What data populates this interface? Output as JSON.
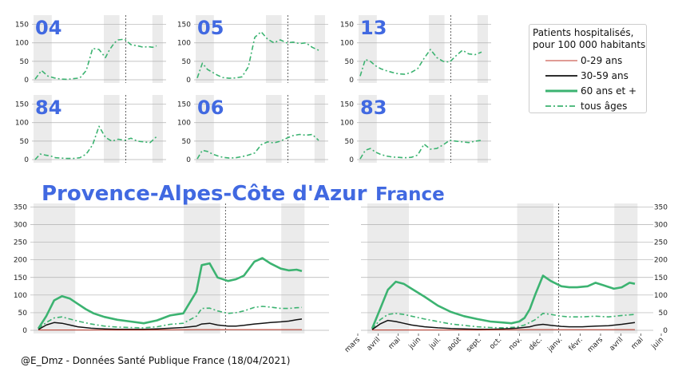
{
  "legend": {
    "title_line1": "Patients hospitalisés,",
    "title_line2": "pour 100 000 habitants",
    "items": [
      {
        "label": "0-29 ans",
        "color": "#c0392b",
        "style": "thin"
      },
      {
        "label": "30-59 ans",
        "color": "#111111",
        "style": "medium"
      },
      {
        "label": "60 ans et +",
        "color": "#3cb371",
        "style": "thick"
      },
      {
        "label": "tous âges",
        "color": "#3cb371",
        "style": "dashdot"
      }
    ]
  },
  "titles": {
    "region": "Provence-Alpes-Côte d'Azur",
    "country": "France"
  },
  "footer": "@E_Dmz - Données Santé Publique France (18/04/2021)",
  "colors": {
    "young": "#c0392b",
    "middle": "#111111",
    "old": "#3cb371",
    "shade": "#ebebeb",
    "grid": "#b0b0b0",
    "title": "#4169e1"
  },
  "chart_data": [
    {
      "type": "line",
      "panel": "04",
      "title": "04",
      "yticks": [
        0,
        50,
        100,
        150
      ],
      "ylim": [
        0,
        175
      ],
      "series": [
        {
          "name": "tous âges",
          "x": [
            0,
            5,
            10,
            15,
            20,
            25,
            30,
            35,
            40,
            45,
            50,
            55,
            58,
            62,
            65,
            70,
            75,
            80,
            85,
            88,
            92,
            95
          ],
          "values": [
            2,
            25,
            10,
            5,
            2,
            1,
            3,
            5,
            25,
            85,
            82,
            60,
            80,
            100,
            108,
            110,
            95,
            92,
            88,
            90,
            88,
            92
          ]
        }
      ]
    },
    {
      "type": "line",
      "panel": "05",
      "title": "05",
      "yticks": [
        0,
        50,
        100,
        150
      ],
      "ylim": [
        0,
        175
      ],
      "series": [
        {
          "name": "tous âges",
          "x": [
            0,
            4,
            8,
            12,
            16,
            20,
            25,
            30,
            35,
            40,
            45,
            50,
            55,
            60,
            65,
            70,
            75,
            80,
            85,
            90,
            95
          ],
          "values": [
            5,
            45,
            28,
            20,
            12,
            6,
            4,
            5,
            8,
            35,
            115,
            130,
            110,
            100,
            108,
            100,
            102,
            98,
            100,
            88,
            80
          ]
        }
      ]
    },
    {
      "type": "line",
      "panel": "13",
      "title": "13",
      "yticks": [
        0,
        50,
        100,
        150
      ],
      "ylim": [
        0,
        175
      ],
      "series": [
        {
          "name": "tous âges",
          "x": [
            0,
            4,
            8,
            12,
            16,
            20,
            25,
            30,
            35,
            40,
            45,
            50,
            55,
            60,
            65,
            70,
            75,
            80,
            85,
            90,
            95
          ],
          "values": [
            10,
            55,
            50,
            38,
            30,
            25,
            20,
            16,
            15,
            20,
            30,
            58,
            82,
            60,
            50,
            48,
            65,
            80,
            70,
            68,
            75
          ]
        }
      ]
    },
    {
      "type": "line",
      "panel": "84",
      "title": "84",
      "yticks": [
        0,
        50,
        100,
        150
      ],
      "ylim": [
        0,
        175
      ],
      "series": [
        {
          "name": "tous âges",
          "x": [
            0,
            4,
            8,
            12,
            16,
            20,
            25,
            30,
            35,
            40,
            45,
            50,
            55,
            60,
            65,
            70,
            75,
            80,
            85,
            90,
            95
          ],
          "values": [
            0,
            15,
            12,
            10,
            5,
            4,
            3,
            3,
            5,
            15,
            40,
            90,
            60,
            50,
            55,
            52,
            58,
            50,
            48,
            46,
            62
          ]
        }
      ]
    },
    {
      "type": "line",
      "panel": "06",
      "title": "06",
      "yticks": [
        0,
        50,
        100,
        150
      ],
      "ylim": [
        0,
        175
      ],
      "series": [
        {
          "name": "tous âges",
          "x": [
            0,
            4,
            8,
            12,
            16,
            20,
            25,
            30,
            35,
            40,
            45,
            50,
            55,
            60,
            65,
            70,
            75,
            80,
            85,
            90,
            95
          ],
          "values": [
            2,
            25,
            22,
            15,
            10,
            6,
            4,
            5,
            8,
            12,
            18,
            40,
            48,
            45,
            50,
            58,
            65,
            68,
            66,
            68,
            52
          ]
        }
      ]
    },
    {
      "type": "line",
      "panel": "83",
      "title": "83",
      "yticks": [
        0,
        50,
        100,
        150
      ],
      "ylim": [
        0,
        175
      ],
      "series": [
        {
          "name": "tous âges",
          "x": [
            0,
            4,
            8,
            12,
            16,
            20,
            25,
            30,
            35,
            40,
            45,
            50,
            55,
            60,
            65,
            70,
            75,
            80,
            85,
            90,
            95
          ],
          "values": [
            2,
            25,
            30,
            20,
            14,
            10,
            7,
            6,
            5,
            6,
            12,
            42,
            28,
            30,
            40,
            52,
            50,
            48,
            46,
            50,
            52
          ]
        }
      ]
    },
    {
      "type": "line",
      "panel": "Provence-Alpes-Côte d'Azur",
      "title": "Provence-Alpes-Côte d'Azur",
      "yticks": [
        0,
        50,
        100,
        150,
        200,
        250,
        300,
        350
      ],
      "ylim": [
        0,
        360
      ],
      "series": [
        {
          "name": "60 ans et +",
          "x": [
            0,
            3,
            6,
            9,
            12,
            15,
            18,
            21,
            25,
            30,
            35,
            40,
            45,
            50,
            55,
            60,
            62,
            65,
            68,
            72,
            75,
            78,
            82,
            85,
            88,
            92,
            95,
            98,
            100
          ],
          "values": [
            5,
            40,
            85,
            97,
            90,
            75,
            60,
            48,
            38,
            30,
            25,
            20,
            28,
            42,
            48,
            110,
            185,
            190,
            150,
            140,
            145,
            155,
            195,
            205,
            190,
            175,
            170,
            172,
            168
          ]
        },
        {
          "name": "tous âges",
          "x": [
            0,
            3,
            6,
            9,
            12,
            15,
            20,
            25,
            30,
            35,
            40,
            45,
            50,
            55,
            60,
            62,
            65,
            68,
            72,
            75,
            78,
            82,
            85,
            88,
            92,
            95,
            98,
            100
          ],
          "values": [
            5,
            22,
            35,
            38,
            32,
            26,
            18,
            12,
            9,
            8,
            7,
            10,
            17,
            20,
            40,
            62,
            63,
            55,
            48,
            50,
            55,
            65,
            68,
            66,
            62,
            62,
            64,
            65
          ]
        },
        {
          "name": "30-59 ans",
          "x": [
            0,
            3,
            6,
            9,
            12,
            15,
            20,
            25,
            30,
            35,
            40,
            45,
            50,
            55,
            60,
            62,
            65,
            68,
            72,
            75,
            78,
            82,
            85,
            88,
            92,
            95,
            98,
            100
          ],
          "values": [
            2,
            15,
            22,
            20,
            15,
            10,
            6,
            4,
            3,
            3,
            3,
            4,
            6,
            8,
            12,
            18,
            20,
            15,
            12,
            12,
            14,
            18,
            20,
            22,
            24,
            26,
            30,
            32
          ]
        },
        {
          "name": "0-29 ans",
          "x": [
            0,
            20,
            40,
            60,
            80,
            100
          ],
          "values": [
            1,
            1,
            1,
            2,
            2,
            2
          ]
        }
      ]
    },
    {
      "type": "line",
      "panel": "France",
      "title": "France",
      "x_tick_labels": [
        "mars",
        "avril",
        "mai",
        "juin",
        "juil.",
        "août",
        "sept.",
        "oct.",
        "nov.",
        "déc.",
        "janv.",
        "févr.",
        "mars",
        "avril",
        "mai",
        "juin"
      ],
      "yticks": [
        0,
        50,
        100,
        150,
        200,
        250,
        300,
        350
      ],
      "ylim": [
        0,
        360
      ],
      "series": [
        {
          "name": "60 ans et +",
          "x": [
            0,
            3,
            6,
            9,
            12,
            15,
            20,
            25,
            30,
            35,
            40,
            45,
            50,
            53,
            56,
            58,
            60,
            62,
            65,
            68,
            72,
            75,
            78,
            82,
            85,
            88,
            92,
            95,
            98,
            100
          ],
          "values": [
            5,
            60,
            115,
            138,
            132,
            118,
            95,
            70,
            52,
            40,
            32,
            25,
            22,
            20,
            25,
            35,
            60,
            100,
            155,
            140,
            125,
            122,
            122,
            125,
            135,
            128,
            118,
            122,
            135,
            132
          ]
        },
        {
          "name": "tous âges",
          "x": [
            0,
            3,
            6,
            9,
            12,
            15,
            20,
            25,
            30,
            35,
            40,
            45,
            50,
            55,
            58,
            62,
            65,
            68,
            72,
            75,
            80,
            85,
            90,
            95,
            100
          ],
          "values": [
            3,
            30,
            45,
            48,
            45,
            40,
            32,
            25,
            18,
            14,
            10,
            8,
            7,
            9,
            15,
            30,
            48,
            45,
            40,
            38,
            38,
            40,
            38,
            42,
            45
          ]
        },
        {
          "name": "30-59 ans",
          "x": [
            0,
            3,
            6,
            9,
            12,
            15,
            20,
            25,
            30,
            35,
            40,
            45,
            50,
            55,
            60,
            62,
            65,
            68,
            72,
            75,
            80,
            85,
            90,
            95,
            100
          ],
          "values": [
            2,
            18,
            28,
            25,
            20,
            15,
            10,
            7,
            5,
            4,
            3,
            3,
            4,
            6,
            10,
            14,
            17,
            14,
            11,
            10,
            10,
            12,
            13,
            17,
            22
          ]
        },
        {
          "name": "0-29 ans",
          "x": [
            0,
            20,
            40,
            60,
            80,
            100
          ],
          "values": [
            1,
            1,
            1,
            2,
            2,
            2
          ]
        }
      ]
    }
  ]
}
